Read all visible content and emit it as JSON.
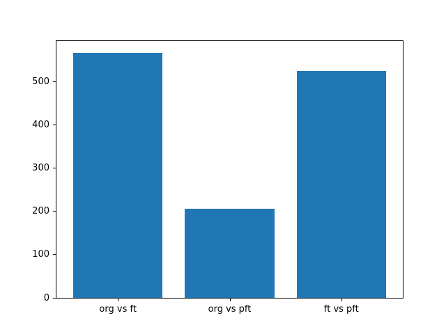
{
  "chart_data": {
    "type": "bar",
    "title": "",
    "xlabel": "",
    "ylabel": "",
    "categories": [
      "org vs ft",
      "org vs pft",
      "ft vs pft"
    ],
    "values": [
      567,
      207,
      525
    ],
    "yticks": [
      0,
      100,
      200,
      300,
      400,
      500
    ],
    "ylim": [
      0,
      595
    ],
    "xlim": [
      -0.55,
      2.55
    ],
    "bar_width": 0.8,
    "bar_color": "#1f77b4",
    "background_color": "#ffffff",
    "axis_color": "#000000",
    "grid": false,
    "legend": null
  }
}
